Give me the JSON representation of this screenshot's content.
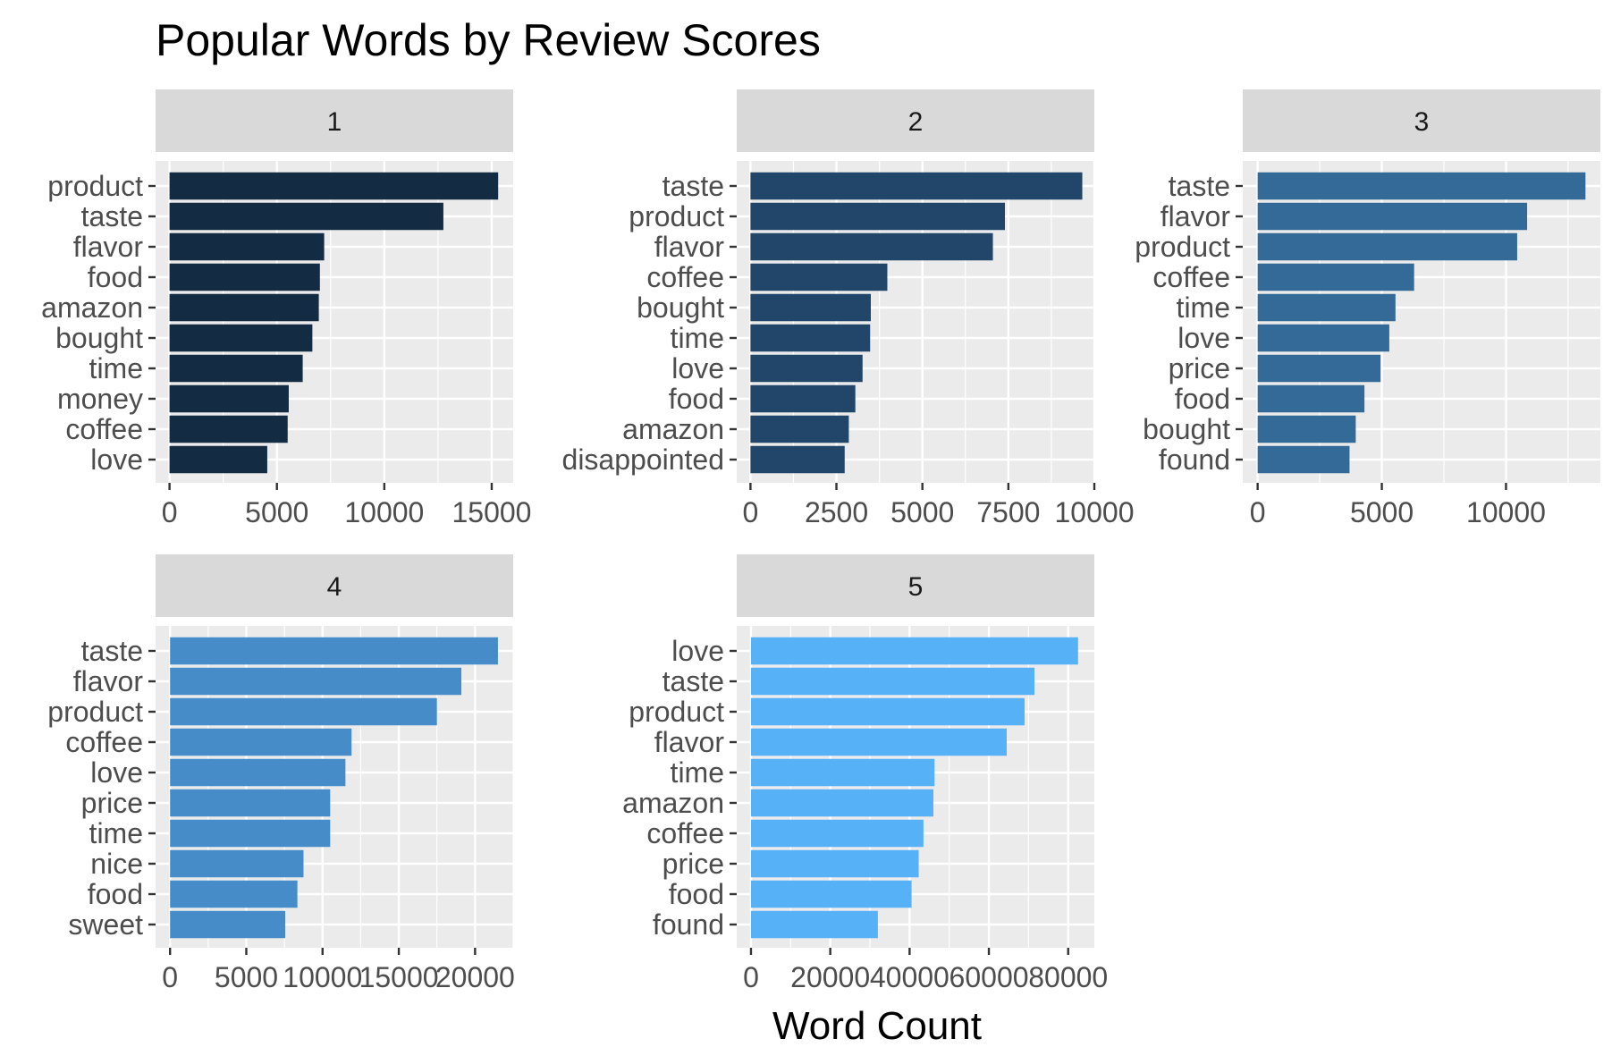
{
  "chart_data": {
    "type": "bar",
    "orientation": "horizontal",
    "title": "Popular Words by Review Scores",
    "xlabel": "Word Count",
    "ylabel": "",
    "grid": true,
    "legend": "none",
    "facets": [
      {
        "name": "1",
        "color": "#132B43",
        "categories": [
          "product",
          "taste",
          "flavor",
          "food",
          "amazon",
          "bought",
          "time",
          "money",
          "coffee",
          "love"
        ],
        "values": [
          15300,
          12750,
          7200,
          7000,
          6950,
          6650,
          6200,
          5550,
          5500,
          4550
        ],
        "xlim": [
          -650,
          16000
        ],
        "ticks": [
          0,
          5000,
          10000,
          15000
        ],
        "tick_labels": [
          "0",
          "5000",
          "10000",
          "15000"
        ]
      },
      {
        "name": "2",
        "color": "#22466A",
        "categories": [
          "taste",
          "product",
          "flavor",
          "coffee",
          "bought",
          "time",
          "love",
          "food",
          "amazon",
          "disappointed"
        ],
        "values": [
          9650,
          7400,
          7050,
          3980,
          3500,
          3480,
          3260,
          3050,
          2860,
          2740
        ],
        "xlim": [
          -400,
          10000
        ],
        "ticks": [
          0,
          2500,
          5000,
          7500,
          10000
        ],
        "tick_labels": [
          "0",
          "2500",
          "5000",
          "7500",
          "10000"
        ]
      },
      {
        "name": "3",
        "color": "#336A98",
        "categories": [
          "taste",
          "flavor",
          "product",
          "coffee",
          "time",
          "love",
          "price",
          "food",
          "bought",
          "found"
        ],
        "values": [
          13200,
          10850,
          10450,
          6300,
          5550,
          5300,
          4950,
          4300,
          3950,
          3700
        ],
        "xlim": [
          -600,
          13800
        ],
        "ticks": [
          0,
          5000,
          10000
        ],
        "tick_labels": [
          "0",
          "5000",
          "10000"
        ]
      },
      {
        "name": "4",
        "color": "#468CC8",
        "categories": [
          "taste",
          "flavor",
          "product",
          "coffee",
          "love",
          "price",
          "time",
          "nice",
          "food",
          "sweet"
        ],
        "values": [
          21500,
          19100,
          17500,
          11900,
          11500,
          10500,
          10500,
          8750,
          8350,
          7550
        ],
        "xlim": [
          -950,
          22500
        ],
        "ticks": [
          0,
          5000,
          10000,
          15000,
          20000
        ],
        "tick_labels": [
          "0",
          "5000",
          "10000",
          "15000",
          "20000"
        ]
      },
      {
        "name": "5",
        "color": "#56B1F7",
        "categories": [
          "love",
          "taste",
          "product",
          "flavor",
          "time",
          "amazon",
          "coffee",
          "price",
          "food",
          "found"
        ],
        "values": [
          82500,
          71500,
          69000,
          64500,
          46300,
          46000,
          43500,
          42300,
          40500,
          32000
        ],
        "xlim": [
          -3600,
          86600
        ],
        "ticks": [
          0,
          20000,
          40000,
          60000,
          80000
        ],
        "tick_labels": [
          "0",
          "20000",
          "40000",
          "60000",
          "80000"
        ]
      }
    ]
  }
}
